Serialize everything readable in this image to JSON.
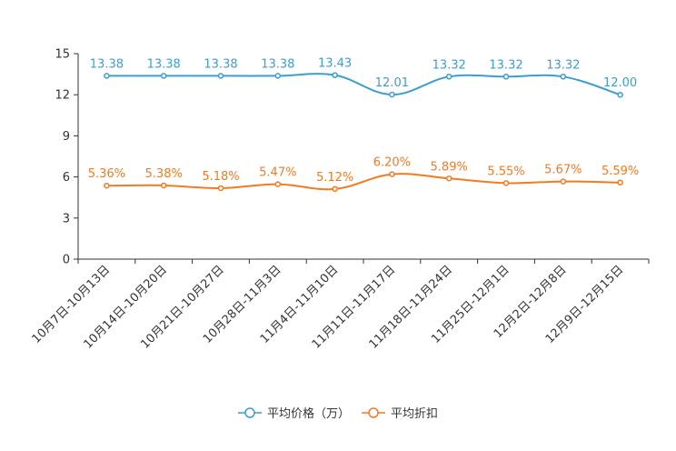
{
  "chart_data": {
    "type": "line",
    "title": "",
    "xlabel": "",
    "ylabel": "",
    "ylim": [
      0,
      15
    ],
    "yticks": [
      0,
      3,
      6,
      9,
      12,
      15
    ],
    "grid": false,
    "legend_position": "bottom-center",
    "categories": [
      "10月7日-10月13日",
      "10月14日-10月20日",
      "10月21日-10月27日",
      "10月28日-11月3日",
      "11月4日-11月10日",
      "11月11日-11月17日",
      "11月18日-11月24日",
      "11月25日-12月1日",
      "12月2日-12月8日",
      "12月9日-12月15日"
    ],
    "series": [
      {
        "name": "平均价格（万）",
        "color": "#3a9fd0",
        "values": [
          13.38,
          13.38,
          13.38,
          13.38,
          13.43,
          12.01,
          13.32,
          13.32,
          13.32,
          12.0
        ],
        "labels": [
          "13.38",
          "13.38",
          "13.38",
          "13.38",
          "13.43",
          "12.01",
          "13.32",
          "13.32",
          "13.32",
          "12.00"
        ]
      },
      {
        "name": "平均折扣",
        "color": "#f47a20",
        "values": [
          5.36,
          5.38,
          5.18,
          5.47,
          5.12,
          6.2,
          5.89,
          5.55,
          5.67,
          5.59
        ],
        "labels": [
          "5.36%",
          "5.38%",
          "5.18%",
          "5.47%",
          "5.12%",
          "6.20%",
          "5.89%",
          "5.55%",
          "5.67%",
          "5.59%"
        ]
      }
    ]
  }
}
